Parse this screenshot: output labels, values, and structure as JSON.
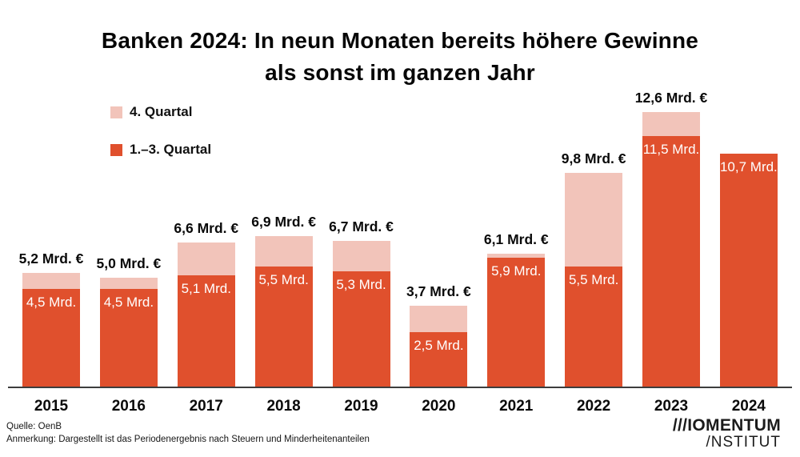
{
  "title": "Banken 2024: In neun Monaten bereits höhere Gewinne\nals sonst im ganzen Jahr",
  "legend": [
    {
      "label": "4. Quartal",
      "color": "#f2c4ba"
    },
    {
      "label": "1.–3. Quartal",
      "color": "#e0502d"
    }
  ],
  "footer": {
    "source": "Quelle: OenB",
    "note": "Anmerkung: Dargestellt ist das Periodenergebnis nach Steuern und Minderheitenanteilen"
  },
  "logo": {
    "line1": "///IOMENTUM",
    "line2": "/NSTITUT"
  },
  "chart_data": {
    "type": "bar",
    "stacked": true,
    "title": "Banken 2024: In neun Monaten bereits höhere Gewinne als sonst im ganzen Jahr",
    "categories": [
      "2015",
      "2016",
      "2017",
      "2018",
      "2019",
      "2020",
      "2021",
      "2022",
      "2023",
      "2024"
    ],
    "series": [
      {
        "name": "1.–3. Quartal",
        "color": "#e0502d",
        "values": [
          4.5,
          4.5,
          5.1,
          5.5,
          5.3,
          2.5,
          5.9,
          5.5,
          11.5,
          10.7
        ]
      },
      {
        "name": "4. Quartal",
        "color": "#f2c4ba",
        "values": [
          0.7,
          0.5,
          1.5,
          1.4,
          1.4,
          1.2,
          0.2,
          4.3,
          1.1,
          0
        ]
      }
    ],
    "totals": [
      5.2,
      5.0,
      6.6,
      6.9,
      6.7,
      3.7,
      6.1,
      9.8,
      12.6,
      10.7
    ],
    "total_labels": [
      "5,2 Mrd. €",
      "5,0 Mrd. €",
      "6,6 Mrd. €",
      "6,9 Mrd. €",
      "6,7 Mrd. €",
      "3,7 Mrd. €",
      "6,1 Mrd. €",
      "9,8 Mrd. €",
      "12,6 Mrd. €",
      null
    ],
    "segment_labels": [
      "4,5 Mrd.",
      "4,5 Mrd.",
      "5,1 Mrd.",
      "5,5 Mrd.",
      "5,3 Mrd.",
      "2,5 Mrd.",
      "5,9 Mrd.",
      "5,5 Mrd.",
      "11,5 Mrd.",
      "10,7 Mrd."
    ],
    "unit": "Mrd. €",
    "ylim": [
      0,
      12.6
    ],
    "grid": false,
    "legend_position": "top-left"
  }
}
